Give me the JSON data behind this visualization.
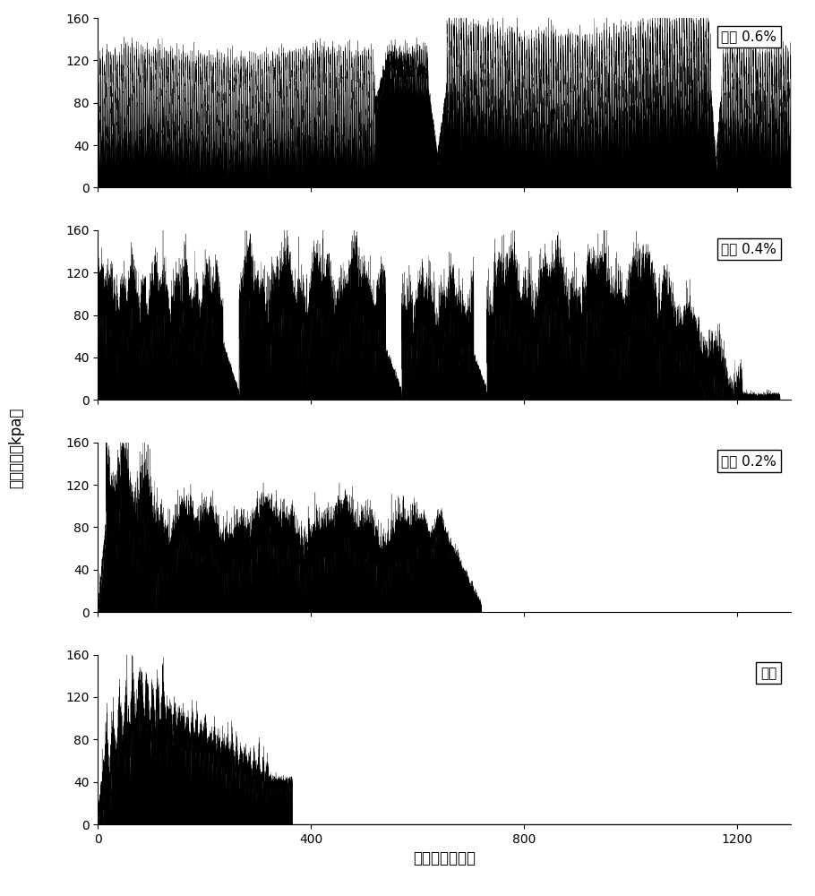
{
  "xlabel": "剪切时间（秒）",
  "ylabel": "抗剪强度（kpa）",
  "xlim": [
    0,
    1300
  ],
  "ylim": [
    0,
    160
  ],
  "xticks": [
    0,
    400,
    800,
    1200
  ],
  "yticks": [
    0,
    40,
    80,
    120,
    160
  ],
  "panel_labels": [
    "纤维 0.6%",
    "纤维 0.4%",
    "纤维 0.2%",
    "砂土"
  ],
  "background_color": "#ffffff",
  "fill_color": "#000000",
  "line_color": "#000000",
  "label_box_color": "#ffffff",
  "label_fontsize": 11,
  "axis_fontsize": 12,
  "tick_fontsize": 10
}
